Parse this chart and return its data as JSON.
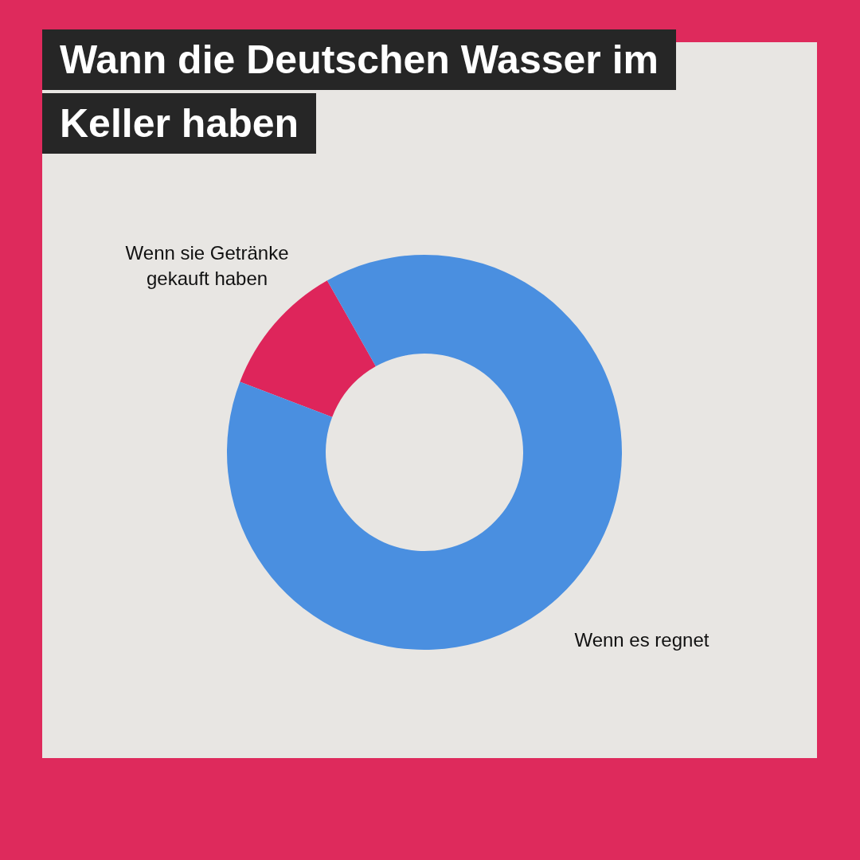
{
  "chart_data": {
    "type": "donut",
    "title": "Wann die Deutschen Wasser im Keller haben",
    "categories": [
      "Wenn sie Getränke gekauft haben",
      "Wenn es regnet"
    ],
    "values": [
      11,
      89
    ],
    "colors": [
      "#de255b",
      "#4a8fe0"
    ],
    "legend": false
  }
}
